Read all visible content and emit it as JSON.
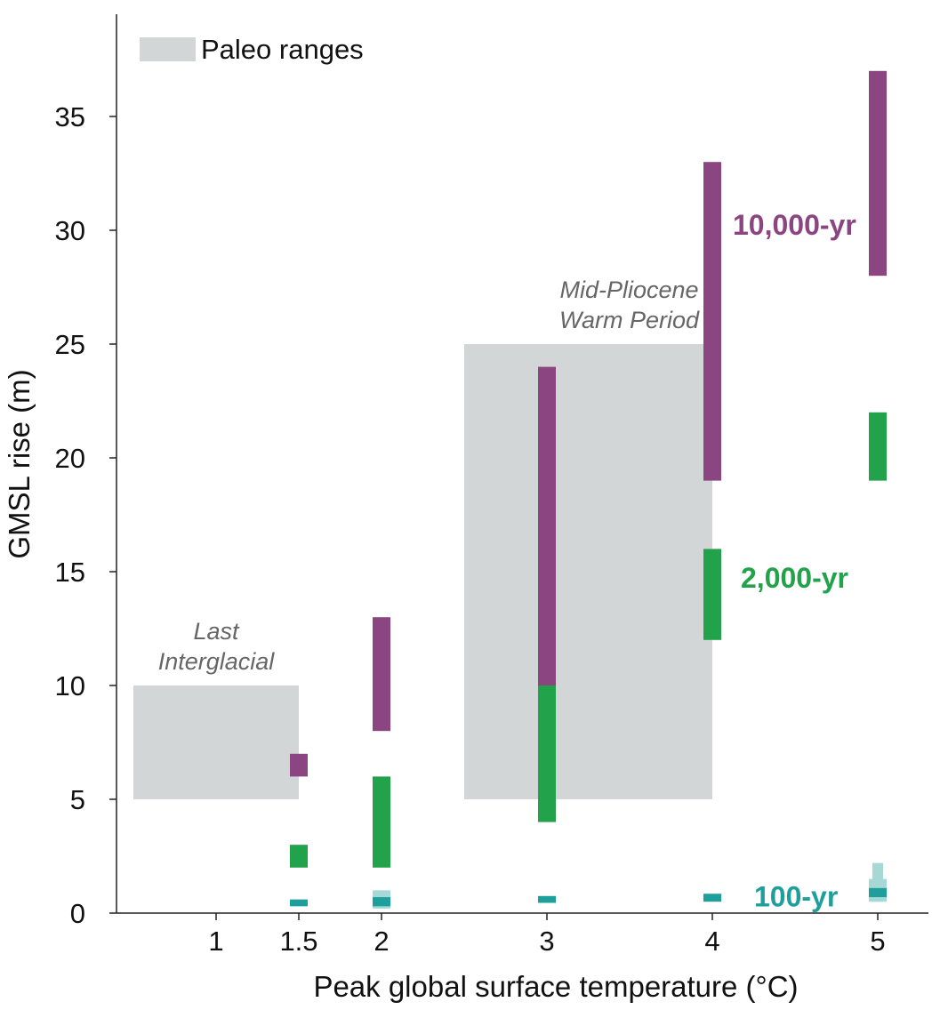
{
  "chart_data": {
    "type": "bar",
    "title": "",
    "xlabel": "Peak global surface temperature (°C)",
    "ylabel": "GMSL rise (m)",
    "xlim": [
      0.45,
      5.25
    ],
    "ylim": [
      0,
      39
    ],
    "x_ticks": [
      1,
      1.5,
      2,
      3,
      4,
      5
    ],
    "x_tick_labels": [
      "1",
      "1.5",
      "2",
      "3",
      "4",
      "5"
    ],
    "y_ticks": [
      0,
      5,
      10,
      15,
      20,
      25,
      30,
      35
    ],
    "y_tick_labels": [
      "0",
      "5",
      "10",
      "15",
      "20",
      "25",
      "30",
      "35"
    ],
    "grid": false,
    "legend": {
      "label": "Paleo ranges",
      "color": "#d2d6d7",
      "placement": "top-left"
    },
    "paleo_ranges": [
      {
        "label_lines": [
          "Last",
          "Interglacial"
        ],
        "x": [
          0.5,
          1.5
        ],
        "y": [
          5,
          10
        ]
      },
      {
        "label_lines": [
          "Mid-Pliocene",
          "Warm Period"
        ],
        "x": [
          2.5,
          4.0
        ],
        "y": [
          5,
          25
        ]
      }
    ],
    "series": [
      {
        "name": "10,000-yr",
        "color": "#8b4580",
        "ranges": [
          {
            "x": 1.5,
            "low": 6,
            "high": 7
          },
          {
            "x": 2,
            "low": 8,
            "high": 13
          },
          {
            "x": 3,
            "low": 10,
            "high": 24
          },
          {
            "x": 4,
            "low": 19,
            "high": 33
          },
          {
            "x": 5,
            "low": 28,
            "high": 37
          }
        ]
      },
      {
        "name": "2,000-yr",
        "color": "#21a24b",
        "ranges": [
          {
            "x": 1.5,
            "low": 2,
            "high": 3
          },
          {
            "x": 2,
            "low": 2,
            "high": 6
          },
          {
            "x": 3,
            "low": 4,
            "high": 10
          },
          {
            "x": 4,
            "low": 12,
            "high": 16
          },
          {
            "x": 5,
            "low": 19,
            "high": 22
          }
        ]
      },
      {
        "name": "100-yr",
        "color": "#1f9f9c",
        "light_color": "#a6d8d6",
        "ranges": [
          {
            "x": 1.5,
            "low": 0.3,
            "high": 0.6,
            "outer_low": 0.3,
            "outer_high": 0.6
          },
          {
            "x": 2,
            "low": 0.3,
            "high": 0.7,
            "outer_low": 0.2,
            "outer_high": 1.0
          },
          {
            "x": 3,
            "low": 0.45,
            "high": 0.75,
            "outer_low": 0.45,
            "outer_high": 0.75
          },
          {
            "x": 4,
            "low": 0.5,
            "high": 0.85,
            "outer_low": 0.5,
            "outer_high": 0.85
          },
          {
            "x": 5,
            "low": 0.7,
            "high": 1.1,
            "outer_low": 0.5,
            "outer_high": 2.2
          }
        ]
      }
    ]
  }
}
